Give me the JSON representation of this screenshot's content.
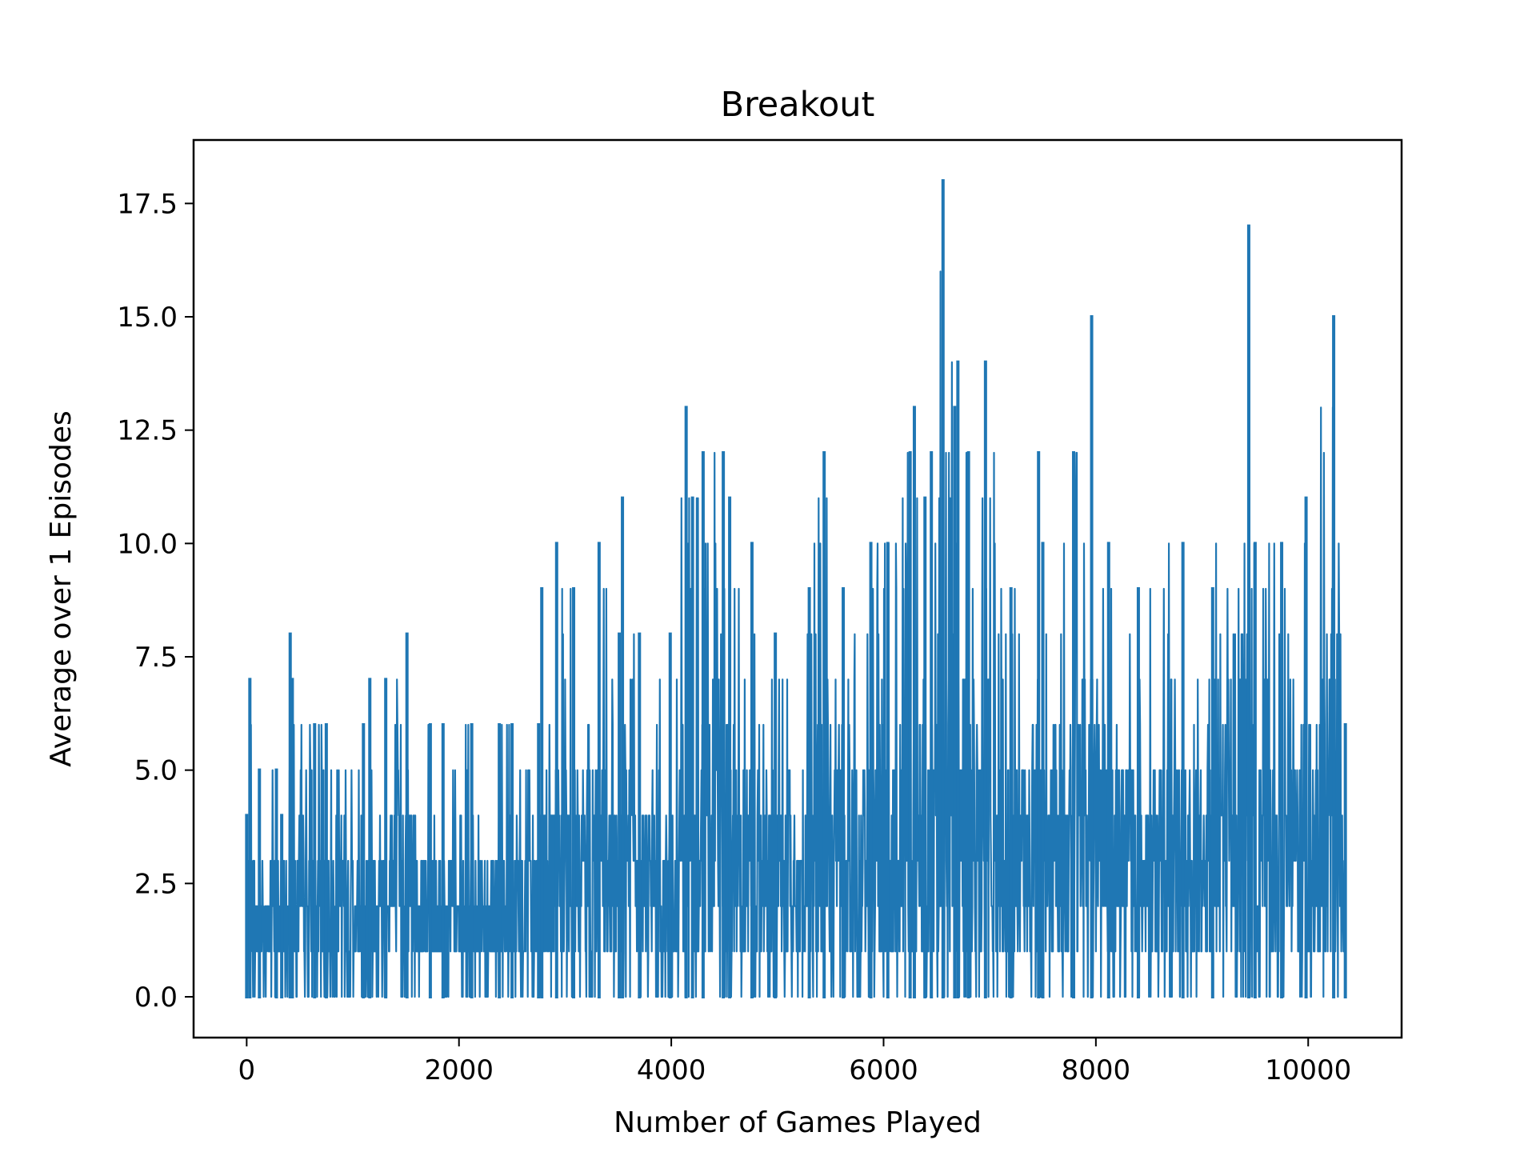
{
  "chart_data": {
    "type": "line",
    "title": "Breakout",
    "xlabel": "Number of Games Played",
    "ylabel": "Average over 1 Episodes",
    "xlim": [
      -500,
      10880
    ],
    "ylim": [
      -0.9,
      18.9
    ],
    "xticks": [
      0,
      2000,
      4000,
      6000,
      8000,
      10000
    ],
    "xtick_labels": [
      "0",
      "2000",
      "4000",
      "6000",
      "8000",
      "10000"
    ],
    "yticks": [
      0.0,
      2.5,
      5.0,
      7.5,
      10.0,
      12.5,
      15.0,
      17.5
    ],
    "ytick_labels": [
      "0.0",
      "2.5",
      "5.0",
      "7.5",
      "10.0",
      "12.5",
      "15.0",
      "17.5"
    ],
    "grid": false,
    "legend": "none",
    "line_color": "#1f77b4",
    "series": [
      {
        "x": [
          0,
          30,
          120,
          280,
          330,
          410,
          430,
          640,
          750,
          1100,
          1160,
          1310,
          1510,
          1730,
          1850,
          2120,
          2380,
          2500,
          2750,
          2780,
          2920,
          3080,
          3320,
          3510,
          3540,
          3700,
          3990,
          4140,
          4200,
          4300,
          4490,
          4550,
          4760,
          4980,
          5300,
          5440,
          5620,
          5880,
          6040,
          6250,
          6290,
          6390,
          6450,
          6560,
          6670,
          6700,
          6800,
          6960,
          7200,
          7460,
          7500,
          7790,
          7960,
          8120,
          8400,
          8820,
          9100,
          9440,
          9500,
          9750,
          9980,
          10240,
          10350
        ],
        "y": [
          4,
          7,
          5,
          5,
          4,
          8,
          7,
          6,
          6,
          6,
          7,
          7,
          8,
          6,
          6,
          6,
          6,
          6,
          6,
          9,
          10,
          9,
          10,
          8,
          11,
          8,
          8,
          13,
          11,
          12,
          12,
          11,
          10,
          8,
          9,
          12,
          9,
          10,
          10,
          12,
          13,
          11,
          12,
          18,
          13,
          14,
          12,
          14,
          9,
          12,
          10,
          12,
          15,
          10,
          9,
          10,
          9,
          17,
          10,
          10,
          11,
          15,
          6
        ]
      }
    ]
  }
}
